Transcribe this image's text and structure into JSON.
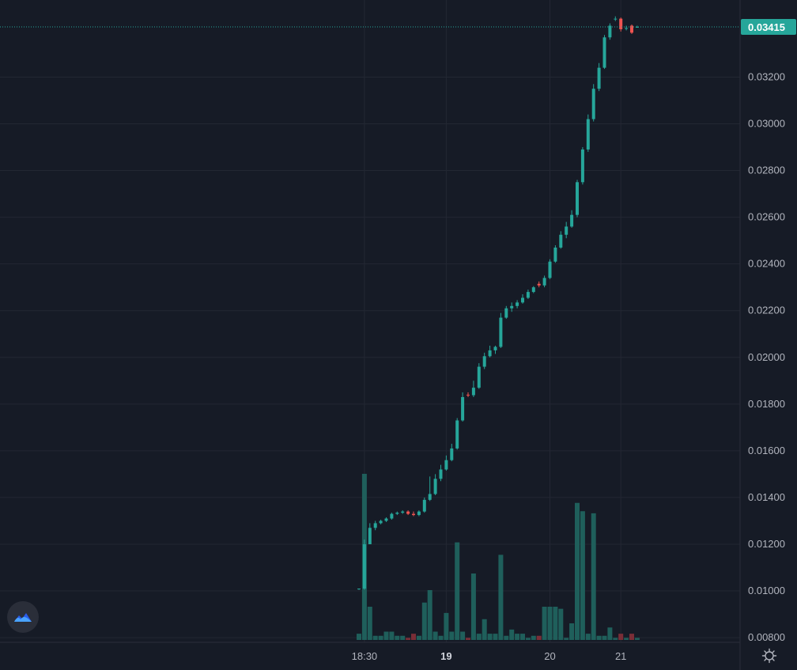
{
  "chart_data": {
    "type": "candlestick",
    "x_axis": {
      "ticks": [
        {
          "label": "18:30",
          "index": 1,
          "bold": false
        },
        {
          "label": "19",
          "index": 16,
          "bold": true
        },
        {
          "label": "20",
          "index": 35,
          "bold": false
        },
        {
          "label": "21",
          "index": 48,
          "bold": false
        }
      ]
    },
    "y_axis": {
      "range": [
        0.0078,
        0.0353
      ],
      "ticks": [
        "0.00800",
        "0.01000",
        "0.01200",
        "0.01400",
        "0.01600",
        "0.01800",
        "0.02000",
        "0.02200",
        "0.02400",
        "0.02600",
        "0.02800",
        "0.03000",
        "0.03200"
      ]
    },
    "last_price": {
      "label": "0.03415",
      "value": 0.03415
    },
    "colors": {
      "up": "#26a69a",
      "down": "#ef5350",
      "volume_up": "#1f5f5b",
      "volume_down": "#7a2e37",
      "background": "#161b26",
      "grid": "#232733",
      "last_price": "#26a69a"
    },
    "grid": true,
    "candles": [
      {
        "o": 0.0101,
        "h": 0.0101,
        "l": 0.01005,
        "c": 0.0101,
        "v": 3
      },
      {
        "o": 0.0101,
        "h": 0.0122,
        "l": 0.01005,
        "c": 0.012,
        "v": 80
      },
      {
        "o": 0.012,
        "h": 0.0129,
        "l": 0.012,
        "c": 0.0127,
        "v": 16
      },
      {
        "o": 0.0127,
        "h": 0.013,
        "l": 0.0126,
        "c": 0.0129,
        "v": 2
      },
      {
        "o": 0.0129,
        "h": 0.01305,
        "l": 0.01285,
        "c": 0.013,
        "v": 2
      },
      {
        "o": 0.013,
        "h": 0.01315,
        "l": 0.01295,
        "c": 0.0131,
        "v": 4
      },
      {
        "o": 0.0131,
        "h": 0.01335,
        "l": 0.01305,
        "c": 0.0133,
        "v": 4
      },
      {
        "o": 0.0133,
        "h": 0.0134,
        "l": 0.01325,
        "c": 0.01335,
        "v": 2
      },
      {
        "o": 0.01335,
        "h": 0.01345,
        "l": 0.0133,
        "c": 0.0134,
        "v": 2
      },
      {
        "o": 0.0134,
        "h": 0.01345,
        "l": 0.01325,
        "c": 0.0133,
        "v": 1,
        "down": true
      },
      {
        "o": 0.0133,
        "h": 0.0134,
        "l": 0.0132,
        "c": 0.01325,
        "v": 3,
        "down": true
      },
      {
        "o": 0.01325,
        "h": 0.01345,
        "l": 0.0132,
        "c": 0.0134,
        "v": 2
      },
      {
        "o": 0.0134,
        "h": 0.014,
        "l": 0.01335,
        "c": 0.0139,
        "v": 18
      },
      {
        "o": 0.0139,
        "h": 0.0149,
        "l": 0.01385,
        "c": 0.01415,
        "v": 24
      },
      {
        "o": 0.01415,
        "h": 0.015,
        "l": 0.0141,
        "c": 0.0148,
        "v": 4
      },
      {
        "o": 0.0148,
        "h": 0.0154,
        "l": 0.0147,
        "c": 0.0152,
        "v": 2
      },
      {
        "o": 0.0152,
        "h": 0.0158,
        "l": 0.01515,
        "c": 0.0156,
        "v": 13
      },
      {
        "o": 0.0156,
        "h": 0.0163,
        "l": 0.01555,
        "c": 0.0161,
        "v": 4
      },
      {
        "o": 0.0161,
        "h": 0.0174,
        "l": 0.01605,
        "c": 0.0173,
        "v": 47
      },
      {
        "o": 0.0173,
        "h": 0.0185,
        "l": 0.01725,
        "c": 0.0183,
        "v": 4
      },
      {
        "o": 0.0184,
        "h": 0.0185,
        "l": 0.0183,
        "c": 0.01838,
        "v": 1,
        "down": true
      },
      {
        "o": 0.01838,
        "h": 0.019,
        "l": 0.0183,
        "c": 0.0187,
        "v": 32
      },
      {
        "o": 0.0187,
        "h": 0.01975,
        "l": 0.01865,
        "c": 0.0196,
        "v": 3
      },
      {
        "o": 0.0196,
        "h": 0.0202,
        "l": 0.0195,
        "c": 0.02005,
        "v": 10
      },
      {
        "o": 0.02005,
        "h": 0.0205,
        "l": 0.02,
        "c": 0.0203,
        "v": 3
      },
      {
        "o": 0.0203,
        "h": 0.0205,
        "l": 0.02015,
        "c": 0.02045,
        "v": 3
      },
      {
        "o": 0.02045,
        "h": 0.0219,
        "l": 0.0204,
        "c": 0.0217,
        "v": 41
      },
      {
        "o": 0.0217,
        "h": 0.0222,
        "l": 0.02165,
        "c": 0.0221,
        "v": 2
      },
      {
        "o": 0.0221,
        "h": 0.02235,
        "l": 0.02195,
        "c": 0.0222,
        "v": 5
      },
      {
        "o": 0.0222,
        "h": 0.02245,
        "l": 0.0221,
        "c": 0.02235,
        "v": 3
      },
      {
        "o": 0.02235,
        "h": 0.0227,
        "l": 0.0223,
        "c": 0.02255,
        "v": 3
      },
      {
        "o": 0.02255,
        "h": 0.0229,
        "l": 0.0225,
        "c": 0.0228,
        "v": 1
      },
      {
        "o": 0.0228,
        "h": 0.02305,
        "l": 0.02275,
        "c": 0.023,
        "v": 2
      },
      {
        "o": 0.02315,
        "h": 0.02325,
        "l": 0.023,
        "c": 0.02308,
        "v": 2,
        "down": true
      },
      {
        "o": 0.02308,
        "h": 0.0235,
        "l": 0.023,
        "c": 0.0234,
        "v": 16
      },
      {
        "o": 0.0234,
        "h": 0.0242,
        "l": 0.02335,
        "c": 0.0241,
        "v": 16
      },
      {
        "o": 0.0241,
        "h": 0.0248,
        "l": 0.02405,
        "c": 0.0247,
        "v": 16
      },
      {
        "o": 0.0247,
        "h": 0.0254,
        "l": 0.02465,
        "c": 0.02525,
        "v": 15
      },
      {
        "o": 0.02525,
        "h": 0.0258,
        "l": 0.0251,
        "c": 0.0256,
        "v": 1
      },
      {
        "o": 0.0256,
        "h": 0.0263,
        "l": 0.02555,
        "c": 0.0261,
        "v": 8
      },
      {
        "o": 0.0261,
        "h": 0.0276,
        "l": 0.026,
        "c": 0.0275,
        "v": 66
      },
      {
        "o": 0.0275,
        "h": 0.029,
        "l": 0.0274,
        "c": 0.0289,
        "v": 62
      },
      {
        "o": 0.0289,
        "h": 0.0304,
        "l": 0.0288,
        "c": 0.0302,
        "v": 3
      },
      {
        "o": 0.0302,
        "h": 0.0317,
        "l": 0.0301,
        "c": 0.0315,
        "v": 61
      },
      {
        "o": 0.0315,
        "h": 0.0326,
        "l": 0.0314,
        "c": 0.0324,
        "v": 2
      },
      {
        "o": 0.0324,
        "h": 0.0338,
        "l": 0.03235,
        "c": 0.0337,
        "v": 2
      },
      {
        "o": 0.0337,
        "h": 0.0343,
        "l": 0.0336,
        "c": 0.0342,
        "v": 6
      },
      {
        "o": 0.0345,
        "h": 0.0346,
        "l": 0.0344,
        "c": 0.0345,
        "v": 1
      },
      {
        "o": 0.0345,
        "h": 0.03455,
        "l": 0.03395,
        "c": 0.03405,
        "v": 3,
        "down": true
      },
      {
        "o": 0.0341,
        "h": 0.0342,
        "l": 0.034,
        "c": 0.0341,
        "v": 1
      },
      {
        "o": 0.0342,
        "h": 0.03425,
        "l": 0.03385,
        "c": 0.0339,
        "v": 3,
        "down": true
      },
      {
        "o": 0.03415,
        "h": 0.0342,
        "l": 0.03412,
        "c": 0.03415,
        "v": 1
      }
    ]
  }
}
